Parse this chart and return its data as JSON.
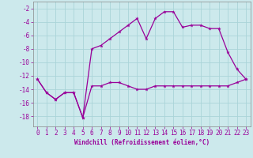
{
  "title": "",
  "xlabel": "Windchill (Refroidissement éolien,°C)",
  "background_color": "#cce9ec",
  "grid_color": "#aad4d8",
  "line_color": "#990099",
  "spine_color": "#888888",
  "xlim": [
    -0.5,
    23.5
  ],
  "ylim": [
    -19.5,
    -1.0
  ],
  "yticks": [
    -18,
    -16,
    -14,
    -12,
    -10,
    -8,
    -6,
    -4,
    -2
  ],
  "xticks": [
    0,
    1,
    2,
    3,
    4,
    5,
    6,
    7,
    8,
    9,
    10,
    11,
    12,
    13,
    14,
    15,
    16,
    17,
    18,
    19,
    20,
    21,
    22,
    23
  ],
  "line1_x": [
    0,
    1,
    2,
    3,
    4,
    5,
    6,
    7,
    8,
    9,
    10,
    11,
    12,
    13,
    14,
    15,
    16,
    17,
    18,
    19,
    20,
    21,
    22,
    23
  ],
  "line1_y": [
    -12.5,
    -14.5,
    -15.5,
    -14.5,
    -14.5,
    -18.2,
    -13.5,
    -13.5,
    -13.0,
    -13.0,
    -13.5,
    -14.0,
    -14.0,
    -13.5,
    -13.5,
    -13.5,
    -13.5,
    -13.5,
    -13.5,
    -13.5,
    -13.5,
    -13.5,
    -13.0,
    -12.5
  ],
  "line2_x": [
    0,
    1,
    2,
    3,
    4,
    5,
    6,
    7,
    8,
    9,
    10,
    11,
    12,
    13,
    14,
    15,
    16,
    17,
    18,
    19,
    20,
    21,
    22,
    23
  ],
  "line2_y": [
    -12.5,
    -14.5,
    -15.5,
    -14.5,
    -14.5,
    -18.2,
    -8.0,
    -7.5,
    -6.5,
    -5.5,
    -4.5,
    -3.5,
    -6.5,
    -3.5,
    -2.5,
    -2.5,
    -4.8,
    -4.5,
    -4.5,
    -5.0,
    -5.0,
    -8.5,
    -11.0,
    -12.5
  ],
  "xlabel_fontsize": 5.5,
  "tick_fontsize": 5.5
}
